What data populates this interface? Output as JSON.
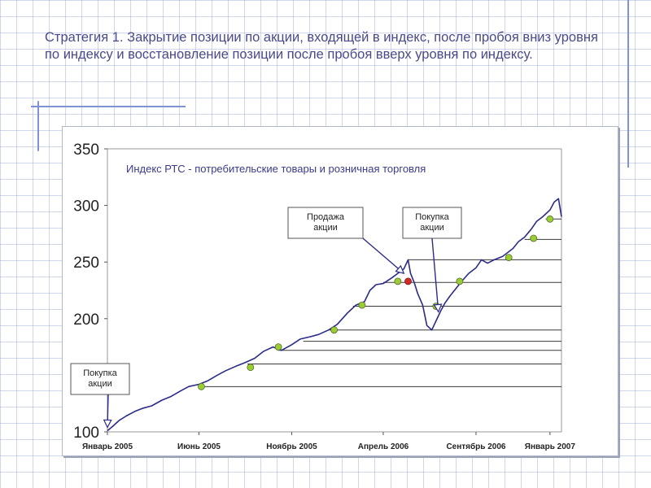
{
  "slide": {
    "title": "Стратегия 1. Закрытие позиции по акции, входящей в индекс, после пробоя вниз уровня по индексу и восстановление позиции после пробоя вверх уровня по индексу."
  },
  "chart_data": {
    "type": "line",
    "title": "Индекс РТС - потребительские товары и розничная торговля",
    "x_tick_labels": [
      "Январь 2005",
      "Июнь 2005",
      "Ноябрь 2005",
      "Апрель 2006",
      "Сентябрь 2006",
      "Январь 2007"
    ],
    "x_tick_dates": [
      "2005-01-01",
      "2005-06-01",
      "2005-11-01",
      "2006-04-01",
      "2006-09-01",
      "2007-01-01"
    ],
    "x_range": [
      "2005-01-01",
      "2007-01-20"
    ],
    "ylim": [
      100,
      350
    ],
    "y_ticks": [
      100,
      150,
      200,
      250,
      300,
      350
    ],
    "y_tick_labels": [
      "100",
      "",
      "200",
      "250",
      "300",
      "350"
    ],
    "grid": false,
    "series": [
      {
        "points": [
          [
            "2005-01-01",
            101
          ],
          [
            "2005-01-10",
            105
          ],
          [
            "2005-01-20",
            110
          ],
          [
            "2005-02-01",
            114
          ],
          [
            "2005-02-15",
            118
          ],
          [
            "2005-03-01",
            121
          ],
          [
            "2005-03-15",
            123
          ],
          [
            "2005-04-01",
            128
          ],
          [
            "2005-04-15",
            131
          ],
          [
            "2005-05-01",
            136
          ],
          [
            "2005-05-15",
            140
          ],
          [
            "2005-06-01",
            142
          ],
          [
            "2005-06-15",
            145
          ],
          [
            "2005-07-01",
            150
          ],
          [
            "2005-07-15",
            154
          ],
          [
            "2005-08-01",
            158
          ],
          [
            "2005-08-15",
            161
          ],
          [
            "2005-09-01",
            165
          ],
          [
            "2005-09-15",
            171
          ],
          [
            "2005-10-01",
            175
          ],
          [
            "2005-10-15",
            172
          ],
          [
            "2005-11-01",
            177
          ],
          [
            "2005-11-15",
            182
          ],
          [
            "2005-12-01",
            184
          ],
          [
            "2005-12-15",
            186
          ],
          [
            "2006-01-01",
            190
          ],
          [
            "2006-01-15",
            195
          ],
          [
            "2006-02-01",
            205
          ],
          [
            "2006-02-15",
            212
          ],
          [
            "2006-03-01",
            215
          ],
          [
            "2006-03-10",
            225
          ],
          [
            "2006-03-20",
            230
          ],
          [
            "2006-04-01",
            231
          ],
          [
            "2006-04-15",
            236
          ],
          [
            "2006-04-25",
            240
          ],
          [
            "2006-05-05",
            244
          ],
          [
            "2006-05-12",
            252
          ],
          [
            "2006-05-16",
            240
          ],
          [
            "2006-05-22",
            232
          ],
          [
            "2006-05-28",
            222
          ],
          [
            "2006-06-05",
            212
          ],
          [
            "2006-06-12",
            194
          ],
          [
            "2006-06-20",
            190
          ],
          [
            "2006-06-27",
            198
          ],
          [
            "2006-07-05",
            207
          ],
          [
            "2006-07-12",
            214
          ],
          [
            "2006-07-20",
            220
          ],
          [
            "2006-08-01",
            228
          ],
          [
            "2006-08-10",
            234
          ],
          [
            "2006-08-20",
            240
          ],
          [
            "2006-09-01",
            245
          ],
          [
            "2006-09-10",
            252
          ],
          [
            "2006-09-20",
            249
          ],
          [
            "2006-10-01",
            252
          ],
          [
            "2006-10-15",
            255
          ],
          [
            "2006-11-01",
            262
          ],
          [
            "2006-11-10",
            268
          ],
          [
            "2006-11-20",
            272
          ],
          [
            "2006-12-01",
            279
          ],
          [
            "2006-12-10",
            286
          ],
          [
            "2006-12-20",
            290
          ],
          [
            "2007-01-01",
            296
          ],
          [
            "2007-01-08",
            303
          ],
          [
            "2007-01-15",
            306
          ],
          [
            "2007-01-20",
            290
          ]
        ],
        "color": "#2b2b8a"
      }
    ],
    "levels": [
      {
        "value": 140,
        "from": "2005-06-01"
      },
      {
        "value": 160,
        "from": "2005-08-20"
      },
      {
        "value": 172,
        "from": "2005-10-10"
      },
      {
        "value": 180,
        "from": "2005-11-20"
      },
      {
        "value": 190,
        "from": "2006-01-01"
      },
      {
        "value": 211,
        "from": "2006-02-10"
      },
      {
        "value": 232,
        "from": "2006-04-01"
      },
      {
        "value": 252,
        "from": "2006-05-12"
      },
      {
        "value": 270,
        "from": "2006-11-20"
      },
      {
        "value": 288,
        "from": "2006-12-25"
      }
    ],
    "level_color": "#3a3a3a",
    "green_points": [
      [
        "2005-06-05",
        140
      ],
      [
        "2005-08-25",
        157
      ],
      [
        "2005-10-10",
        175
      ],
      [
        "2006-01-10",
        190
      ],
      [
        "2006-02-25",
        212
      ],
      [
        "2006-04-25",
        233
      ],
      [
        "2006-06-27",
        211
      ],
      [
        "2006-08-05",
        233
      ],
      [
        "2006-10-25",
        254
      ],
      [
        "2006-12-05",
        271
      ],
      [
        "2007-01-01",
        288
      ]
    ],
    "red_points": [
      [
        "2006-05-12",
        233
      ]
    ],
    "green_color": "#9acd32",
    "red_color": "#d42a2a",
    "annotations": [
      {
        "id": "sell",
        "lines": [
          "Продажа",
          "акции"
        ],
        "arrow_to": [
          "2006-05-05",
          240
        ]
      },
      {
        "id": "buy2",
        "lines": [
          "Покупка",
          "акции"
        ],
        "arrow_to": [
          "2006-07-01",
          206
        ]
      },
      {
        "id": "buy1",
        "lines": [
          "Покупка",
          "акции"
        ],
        "arrow_to": [
          "2005-01-01",
          104
        ]
      }
    ]
  }
}
